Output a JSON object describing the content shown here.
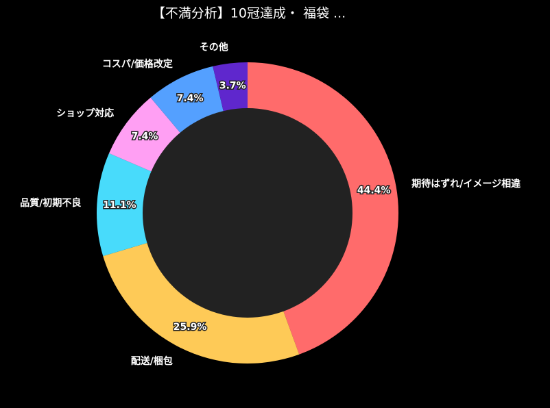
{
  "chart_data": {
    "type": "donut",
    "title": "【不満分析】10冠達成・ 福袋 ...",
    "categories": [
      "期待はずれ/イメージ相違",
      "配送/梱包",
      "品質/初期不良",
      "ショップ対応",
      "コスパ/価格改定",
      "その他"
    ],
    "values": [
      44.4,
      25.9,
      11.1,
      7.4,
      7.4,
      3.7
    ],
    "value_labels": [
      "44.4%",
      "25.9%",
      "11.1%",
      "7.4%",
      "7.4%",
      "3.7%"
    ],
    "colors": [
      "#ff6b6b",
      "#feca57",
      "#48dbfb",
      "#ff9ff3",
      "#54a0ff",
      "#5f27cd"
    ],
    "hole_color": "#222222"
  }
}
